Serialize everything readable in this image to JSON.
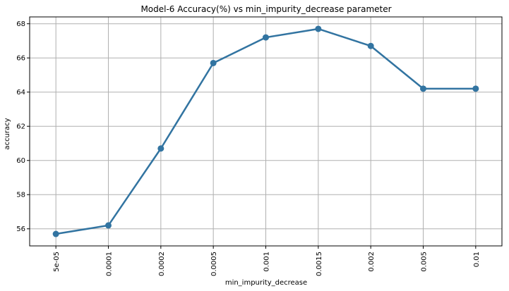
{
  "chart_data": {
    "type": "line",
    "title": "Model-6 Accuracy(%) vs min_impurity_decrease parameter",
    "xlabel": "min_impurity_decrease",
    "ylabel": "accuracy",
    "categories": [
      "5e-05",
      "0.0001",
      "0.0002",
      "0.0005",
      "0.001",
      "0.0015",
      "0.002",
      "0.005",
      "0.01"
    ],
    "series": [
      {
        "values": [
          55.7,
          56.2,
          60.7,
          65.7,
          67.2,
          67.7,
          66.7,
          64.2,
          64.2
        ]
      }
    ],
    "ylim": [
      55.0,
      68.4
    ],
    "yticks": [
      56,
      58,
      60,
      62,
      64,
      66,
      68
    ],
    "grid": true,
    "colors": {
      "line": "#3274a1",
      "grid": "#b0b0b0",
      "axis": "#000000"
    }
  }
}
